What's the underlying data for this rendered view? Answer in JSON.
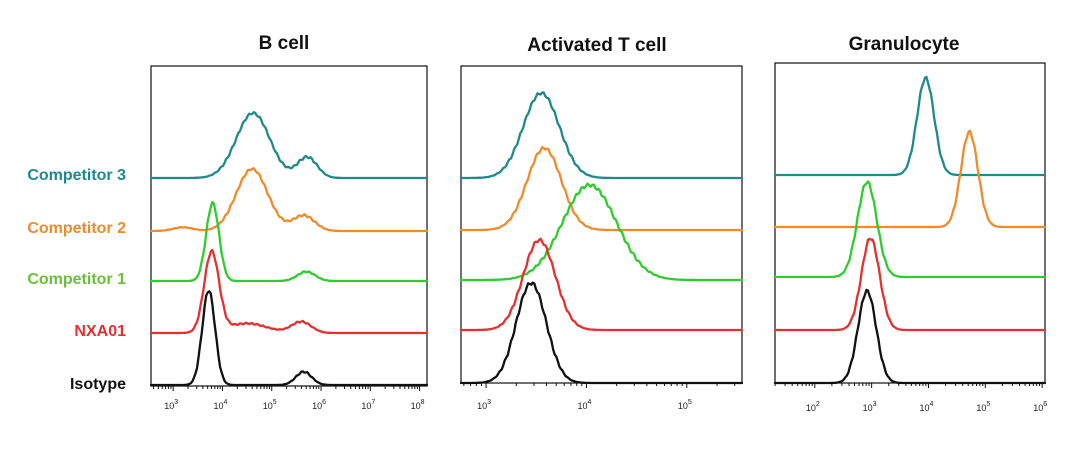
{
  "chart_data": [
    {
      "type": "line",
      "title": "B cell",
      "xscale": "log",
      "xlim_exp": [
        2.55,
        8.15
      ],
      "tick_labels": [
        {
          "base": "10",
          "exp": "3",
          "value_exp": 3
        },
        {
          "base": "10",
          "exp": "4",
          "value_exp": 4
        },
        {
          "base": "10",
          "exp": "5",
          "value_exp": 5
        },
        {
          "base": "10",
          "exp": "6",
          "value_exp": 6
        },
        {
          "base": "10",
          "exp": "7",
          "value_exp": 7
        },
        {
          "base": "10",
          "exp": "8",
          "value_exp": 8
        }
      ],
      "series": [
        {
          "name": "Competitor 3",
          "color": "#1f8a8a",
          "baseline_row": 4,
          "peaks": [
            {
              "center_exp": 4.62,
              "width": 0.34,
              "height": 1.0
            },
            {
              "center_exp": 5.72,
              "width": 0.2,
              "height": 0.32
            }
          ]
        },
        {
          "name": "Competitor 2",
          "color": "#f08b2c",
          "baseline_row": 3,
          "peaks": [
            {
              "center_exp": 4.6,
              "width": 0.32,
              "height": 1.0
            },
            {
              "center_exp": 5.65,
              "width": 0.22,
              "height": 0.25
            },
            {
              "center_exp": 3.2,
              "width": 0.2,
              "height": 0.06
            }
          ]
        },
        {
          "name": "Competitor 1",
          "color": "#2ecc2e",
          "baseline_row": 2,
          "peaks": [
            {
              "center_exp": 3.8,
              "width": 0.13,
              "height": 1.0
            },
            {
              "center_exp": 5.7,
              "width": 0.18,
              "height": 0.12
            }
          ]
        },
        {
          "name": "NXA01",
          "color": "#e53030",
          "baseline_row": 1,
          "peaks": [
            {
              "center_exp": 3.78,
              "width": 0.15,
              "height": 1.0
            },
            {
              "center_exp": 5.6,
              "width": 0.2,
              "height": 0.14
            },
            {
              "center_exp": 4.5,
              "width": 0.4,
              "height": 0.12
            }
          ]
        },
        {
          "name": "Isotype",
          "color": "#111111",
          "baseline_row": 0,
          "peaks": [
            {
              "center_exp": 3.72,
              "width": 0.13,
              "height": 1.0
            },
            {
              "center_exp": 5.65,
              "width": 0.16,
              "height": 0.14
            }
          ]
        }
      ]
    },
    {
      "type": "line",
      "title": "Activated T cell",
      "xscale": "log",
      "xlim_exp": [
        2.75,
        5.55
      ],
      "tick_labels": [
        {
          "base": "10",
          "exp": "3",
          "value_exp": 3
        },
        {
          "base": "10",
          "exp": "4",
          "value_exp": 4
        },
        {
          "base": "10",
          "exp": "5",
          "value_exp": 5
        }
      ],
      "series": [
        {
          "name": "Competitor 3",
          "color": "#1f8a8a",
          "baseline_row": 4,
          "peaks": [
            {
              "center_exp": 3.55,
              "width": 0.18,
              "height": 1.0
            }
          ]
        },
        {
          "name": "Competitor 2",
          "color": "#f08b2c",
          "baseline_row": 3,
          "peaks": [
            {
              "center_exp": 3.58,
              "width": 0.17,
              "height": 1.0
            }
          ]
        },
        {
          "name": "Competitor 1",
          "color": "#2ecc2e",
          "baseline_row": 2,
          "peaks": [
            {
              "center_exp": 4.03,
              "width": 0.27,
              "height": 1.0
            }
          ]
        },
        {
          "name": "NXA01",
          "color": "#e53030",
          "baseline_row": 1,
          "peaks": [
            {
              "center_exp": 3.53,
              "width": 0.16,
              "height": 1.0
            }
          ]
        },
        {
          "name": "Isotype",
          "color": "#111111",
          "baseline_row": 0,
          "peaks": [
            {
              "center_exp": 3.45,
              "width": 0.15,
              "height": 1.0
            }
          ]
        }
      ]
    },
    {
      "type": "line",
      "title": "Granulocyte",
      "xscale": "log",
      "xlim_exp": [
        1.3,
        6.05
      ],
      "tick_labels": [
        {
          "base": "10",
          "exp": "2",
          "value_exp": 2
        },
        {
          "base": "10",
          "exp": "3",
          "value_exp": 3
        },
        {
          "base": "10",
          "exp": "4",
          "value_exp": 4
        },
        {
          "base": "10",
          "exp": "5",
          "value_exp": 5
        },
        {
          "base": "10",
          "exp": "6",
          "value_exp": 6
        }
      ],
      "series": [
        {
          "name": "Competitor 3",
          "color": "#1f8a8a",
          "baseline_row": 4,
          "peaks": [
            {
              "center_exp": 3.95,
              "width": 0.15,
              "height": 1.0
            }
          ]
        },
        {
          "name": "Competitor 2",
          "color": "#f08b2c",
          "baseline_row": 3,
          "peaks": [
            {
              "center_exp": 4.72,
              "width": 0.15,
              "height": 1.0
            }
          ]
        },
        {
          "name": "Competitor 1",
          "color": "#2ecc2e",
          "baseline_row": 2,
          "peaks": [
            {
              "center_exp": 2.92,
              "width": 0.17,
              "height": 1.0
            }
          ]
        },
        {
          "name": "NXA01",
          "color": "#e53030",
          "baseline_row": 1,
          "peaks": [
            {
              "center_exp": 2.98,
              "width": 0.16,
              "height": 1.0
            }
          ]
        },
        {
          "name": "Isotype",
          "color": "#111111",
          "baseline_row": 0,
          "peaks": [
            {
              "center_exp": 2.92,
              "width": 0.16,
              "height": 1.0
            }
          ]
        }
      ]
    }
  ],
  "row_labels": [
    {
      "text": "Competitor 3",
      "color": "#1f8a8a"
    },
    {
      "text": "Competitor 2",
      "color": "#f08b2c"
    },
    {
      "text": "Competitor 1",
      "color": "#6cbf3a"
    },
    {
      "text": "NXA01",
      "color": "#e53030"
    },
    {
      "text": "Isotype",
      "color": "#111111"
    }
  ]
}
